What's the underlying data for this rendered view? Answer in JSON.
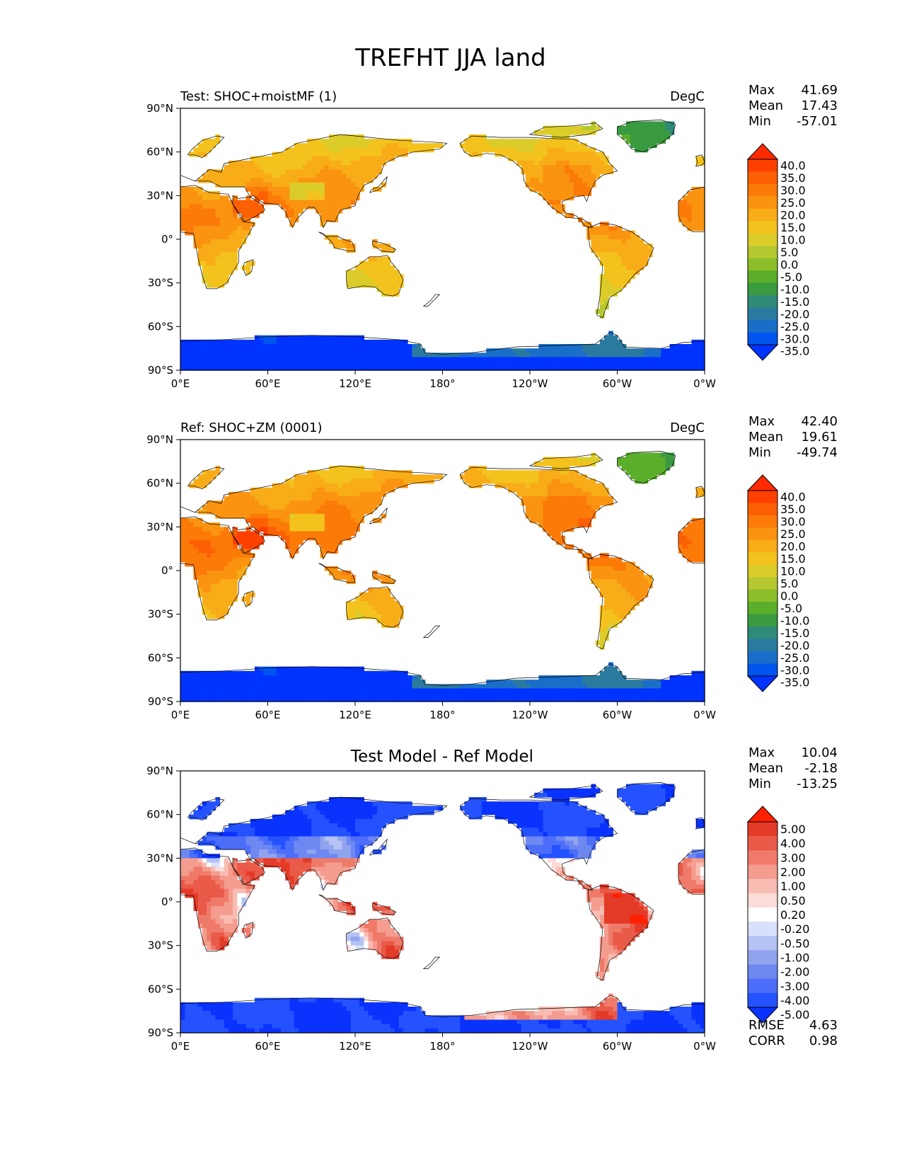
{
  "title": "TREFHT JJA land",
  "colors": {
    "ocean": "#ffffff",
    "coast": "#000000",
    "temp_scale": [
      "#0033ff",
      "#0055ee",
      "#1a6ec8",
      "#2a7aa0",
      "#2f8a78",
      "#3a9a40",
      "#5aae2a",
      "#8cbe2a",
      "#b6c830",
      "#dccc2a",
      "#f4c21c",
      "#f8ac18",
      "#fa9410",
      "#fb7a08",
      "#fc6004",
      "#fd4000",
      "#ff2a00"
    ],
    "diff_scale": [
      "#0a32ff",
      "#2452ff",
      "#4c6ef8",
      "#6e88f2",
      "#90a4ee",
      "#b4c2f4",
      "#d8e0fa",
      "#ffffff",
      "#fcdcd8",
      "#f8bcb2",
      "#f49c8e",
      "#ef7a6a",
      "#ea5a48",
      "#e43a28",
      "#ff2000"
    ]
  },
  "panels": [
    {
      "id": "test",
      "left_label": "Test: SHOC+moistMF (1)",
      "center_label": "",
      "units": "DegC",
      "stats": [
        {
          "label": "Max",
          "value": "41.69"
        },
        {
          "label": "Mean",
          "value": "17.43"
        },
        {
          "label": "Min",
          "value": "-57.01"
        }
      ],
      "colorbar_kind": "temp",
      "colorbar_ticks": [
        "40.0",
        "35.0",
        "30.0",
        "25.0",
        "20.0",
        "15.0",
        "10.0",
        "5.0",
        "0.0",
        "-5.0",
        "-10.0",
        "-15.0",
        "-20.0",
        "-25.0",
        "-30.0",
        "-35.0"
      ],
      "field": {
        "kind": "temp",
        "warm_shift": -4
      }
    },
    {
      "id": "ref",
      "left_label": "Ref: SHOC+ZM (0001)",
      "center_label": "",
      "units": "DegC",
      "stats": [
        {
          "label": "Max",
          "value": "42.40"
        },
        {
          "label": "Mean",
          "value": "19.61"
        },
        {
          "label": "Min",
          "value": "-49.74"
        }
      ],
      "colorbar_kind": "temp",
      "colorbar_ticks": [
        "40.0",
        "35.0",
        "30.0",
        "25.0",
        "20.0",
        "15.0",
        "10.0",
        "5.0",
        "0.0",
        "-5.0",
        "-10.0",
        "-15.0",
        "-20.0",
        "-25.0",
        "-30.0",
        "-35.0"
      ],
      "field": {
        "kind": "temp",
        "warm_shift": 0
      }
    },
    {
      "id": "diff",
      "left_label": "",
      "center_label": "Test Model - Ref Model",
      "units": "",
      "stats": [
        {
          "label": "Max",
          "value": "10.04"
        },
        {
          "label": "Mean",
          "value": "-2.18"
        },
        {
          "label": "Min",
          "value": "-13.25"
        }
      ],
      "colorbar_kind": "diff",
      "colorbar_ticks": [
        "5.00",
        "4.00",
        "3.00",
        "2.00",
        "1.00",
        "0.50",
        "0.20",
        "-0.20",
        "-0.50",
        "-1.00",
        "-2.00",
        "-3.00",
        "-4.00",
        "-5.00"
      ],
      "extra_stats": [
        {
          "label": "RMSE",
          "value": "4.63"
        },
        {
          "label": "CORR",
          "value": "0.98"
        }
      ],
      "field": {
        "kind": "diff"
      }
    }
  ],
  "axes": {
    "lat_ticks": [
      "90°N",
      "60°N",
      "30°N",
      "0°",
      "30°S",
      "60°S",
      "90°S"
    ],
    "lon_ticks": [
      "0°E",
      "60°E",
      "120°E",
      "180°",
      "120°W",
      "60°W",
      "0°W"
    ]
  },
  "land": [
    {
      "name": "Eurasia",
      "lonlat": [
        [
          0,
          44
        ],
        [
          10,
          40
        ],
        [
          20,
          48
        ],
        [
          28,
          46
        ],
        [
          30,
          52
        ],
        [
          45,
          55
        ],
        [
          60,
          58
        ],
        [
          70,
          60
        ],
        [
          80,
          66
        ],
        [
          95,
          69
        ],
        [
          110,
          72
        ],
        [
          130,
          70
        ],
        [
          150,
          68
        ],
        [
          170,
          67
        ],
        [
          183,
          66
        ],
        [
          178,
          62
        ],
        [
          160,
          60
        ],
        [
          150,
          57
        ],
        [
          140,
          52
        ],
        [
          138,
          46
        ],
        [
          132,
          40
        ],
        [
          126,
          37
        ],
        [
          122,
          30
        ],
        [
          120,
          23
        ],
        [
          110,
          20
        ],
        [
          106,
          12
        ],
        [
          101,
          13
        ],
        [
          98,
          8
        ],
        [
          96,
          16
        ],
        [
          92,
          22
        ],
        [
          88,
          22
        ],
        [
          80,
          14
        ],
        [
          77,
          8
        ],
        [
          72,
          19
        ],
        [
          67,
          24
        ],
        [
          57,
          25
        ],
        [
          55,
          26
        ],
        [
          50,
          30
        ],
        [
          48,
          29
        ],
        [
          44,
          36
        ],
        [
          36,
          36
        ],
        [
          28,
          36
        ],
        [
          20,
          40
        ],
        [
          10,
          40
        ]
      ]
    },
    {
      "name": "Scandinavia",
      "lonlat": [
        [
          5,
          58
        ],
        [
          8,
          62
        ],
        [
          15,
          68
        ],
        [
          25,
          71
        ],
        [
          30,
          70
        ],
        [
          25,
          65
        ],
        [
          20,
          60
        ],
        [
          15,
          56
        ],
        [
          10,
          58
        ]
      ]
    },
    {
      "name": "Arabia",
      "lonlat": [
        [
          36,
          30
        ],
        [
          40,
          28
        ],
        [
          48,
          29
        ],
        [
          56,
          24
        ],
        [
          58,
          20
        ],
        [
          52,
          16
        ],
        [
          44,
          12
        ],
        [
          42,
          16
        ],
        [
          36,
          24
        ]
      ]
    },
    {
      "name": "Africa",
      "lonlat": [
        [
          0,
          36
        ],
        [
          10,
          37
        ],
        [
          20,
          32
        ],
        [
          33,
          31
        ],
        [
          36,
          24
        ],
        [
          43,
          12
        ],
        [
          51,
          11
        ],
        [
          45,
          0
        ],
        [
          40,
          -8
        ],
        [
          40,
          -16
        ],
        [
          35,
          -24
        ],
        [
          32,
          -30
        ],
        [
          25,
          -34
        ],
        [
          18,
          -34
        ],
        [
          15,
          -25
        ],
        [
          12,
          -12
        ],
        [
          10,
          -2
        ],
        [
          9,
          4
        ],
        [
          0,
          5
        ]
      ]
    },
    {
      "name": "WestAfrica",
      "lonlat": [
        [
          342,
          16
        ],
        [
          342,
          26
        ],
        [
          350,
          34
        ],
        [
          360,
          36
        ],
        [
          360,
          5
        ],
        [
          352,
          5
        ],
        [
          345,
          10
        ]
      ]
    },
    {
      "name": "Madagascar",
      "lonlat": [
        [
          44,
          -16
        ],
        [
          50,
          -14
        ],
        [
          49,
          -22
        ],
        [
          45,
          -25
        ],
        [
          43,
          -20
        ]
      ]
    },
    {
      "name": "Australia",
      "lonlat": [
        [
          114,
          -22
        ],
        [
          122,
          -18
        ],
        [
          130,
          -12
        ],
        [
          136,
          -12
        ],
        [
          142,
          -11
        ],
        [
          145,
          -16
        ],
        [
          150,
          -22
        ],
        [
          153,
          -28
        ],
        [
          150,
          -37
        ],
        [
          146,
          -39
        ],
        [
          140,
          -38
        ],
        [
          134,
          -33
        ],
        [
          126,
          -32
        ],
        [
          115,
          -34
        ],
        [
          114,
          -28
        ]
      ]
    },
    {
      "name": "Indonesia",
      "lonlat": [
        [
          95,
          5
        ],
        [
          98,
          4
        ],
        [
          104,
          -2
        ],
        [
          106,
          -6
        ],
        [
          115,
          -8
        ],
        [
          120,
          -8
        ],
        [
          118,
          -2
        ],
        [
          112,
          0
        ],
        [
          108,
          2
        ],
        [
          100,
          2
        ]
      ]
    },
    {
      "name": "NewGuinea",
      "lonlat": [
        [
          132,
          -1
        ],
        [
          140,
          -3
        ],
        [
          148,
          -7
        ],
        [
          146,
          -9
        ],
        [
          138,
          -8
        ],
        [
          132,
          -4
        ]
      ]
    },
    {
      "name": "Japan",
      "lonlat": [
        [
          130,
          32
        ],
        [
          136,
          34
        ],
        [
          141,
          38
        ],
        [
          142,
          43
        ],
        [
          140,
          41
        ],
        [
          136,
          36
        ],
        [
          131,
          34
        ]
      ]
    },
    {
      "name": "NewZealand",
      "lonlat": [
        [
          167,
          -46
        ],
        [
          172,
          -42
        ],
        [
          175,
          -38
        ],
        [
          178,
          -38
        ],
        [
          174,
          -42
        ],
        [
          170,
          -46
        ]
      ]
    },
    {
      "name": "NorthAmerica",
      "lonlat": [
        [
          192,
          66
        ],
        [
          200,
          71
        ],
        [
          220,
          70
        ],
        [
          240,
          70
        ],
        [
          260,
          69
        ],
        [
          270,
          69
        ],
        [
          280,
          64
        ],
        [
          290,
          60
        ],
        [
          295,
          52
        ],
        [
          300,
          47
        ],
        [
          290,
          44
        ],
        [
          285,
          40
        ],
        [
          281,
          32
        ],
        [
          279,
          26
        ],
        [
          277,
          30
        ],
        [
          270,
          29
        ],
        [
          262,
          26
        ],
        [
          263,
          20
        ],
        [
          265,
          18
        ],
        [
          272,
          16
        ],
        [
          278,
          9
        ],
        [
          283,
          8
        ],
        [
          282,
          10
        ],
        [
          276,
          14
        ],
        [
          265,
          15
        ],
        [
          255,
          22
        ],
        [
          247,
          31
        ],
        [
          240,
          34
        ],
        [
          236,
          40
        ],
        [
          235,
          48
        ],
        [
          228,
          54
        ],
        [
          220,
          58
        ],
        [
          210,
          59
        ],
        [
          200,
          57
        ],
        [
          195,
          60
        ]
      ]
    },
    {
      "name": "SouthAmerica",
      "lonlat": [
        [
          280,
          8
        ],
        [
          288,
          11
        ],
        [
          298,
          10
        ],
        [
          310,
          5
        ],
        [
          320,
          -2
        ],
        [
          325,
          -6
        ],
        [
          320,
          -18
        ],
        [
          312,
          -24
        ],
        [
          303,
          -35
        ],
        [
          295,
          -40
        ],
        [
          292,
          -48
        ],
        [
          290,
          -54
        ],
        [
          286,
          -52
        ],
        [
          288,
          -40
        ],
        [
          289,
          -30
        ],
        [
          290,
          -18
        ],
        [
          286,
          -12
        ],
        [
          281,
          -5
        ]
      ]
    },
    {
      "name": "Greenland",
      "lonlat": [
        [
          300,
          77
        ],
        [
          310,
          81
        ],
        [
          330,
          82
        ],
        [
          340,
          79
        ],
        [
          338,
          72
        ],
        [
          330,
          66
        ],
        [
          318,
          60
        ],
        [
          310,
          62
        ],
        [
          305,
          68
        ],
        [
          300,
          72
        ]
      ]
    },
    {
      "name": "ArcticIslands",
      "lonlat": [
        [
          240,
          72
        ],
        [
          250,
          77
        ],
        [
          270,
          78
        ],
        [
          285,
          80
        ],
        [
          290,
          76
        ],
        [
          280,
          72
        ],
        [
          262,
          70
        ],
        [
          250,
          71
        ]
      ]
    },
    {
      "name": "Britain",
      "lonlat": [
        [
          354,
          50
        ],
        [
          358,
          51
        ],
        [
          360,
          53
        ],
        [
          358,
          58
        ],
        [
          354,
          57
        ],
        [
          355,
          53
        ]
      ]
    },
    {
      "name": "Antarctica",
      "lonlat": [
        [
          0,
          -70
        ],
        [
          30,
          -69
        ],
        [
          60,
          -67
        ],
        [
          90,
          -66
        ],
        [
          120,
          -67
        ],
        [
          150,
          -69
        ],
        [
          165,
          -72
        ],
        [
          168,
          -78
        ],
        [
          180,
          -79
        ],
        [
          200,
          -78
        ],
        [
          230,
          -74
        ],
        [
          260,
          -73
        ],
        [
          285,
          -72
        ],
        [
          295,
          -64
        ],
        [
          300,
          -66
        ],
        [
          305,
          -74
        ],
        [
          330,
          -75
        ],
        [
          345,
          -71
        ],
        [
          360,
          -70
        ],
        [
          360,
          -90
        ],
        [
          0,
          -90
        ]
      ]
    }
  ]
}
